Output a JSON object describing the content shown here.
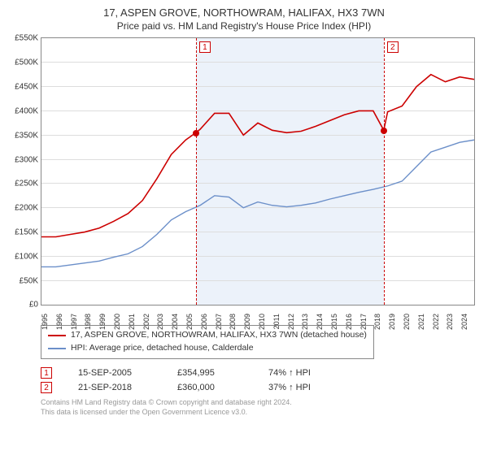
{
  "title": {
    "address": "17, ASPEN GROVE, NORTHOWRAM, HALIFAX, HX3 7WN",
    "subtitle": "Price paid vs. HM Land Registry's House Price Index (HPI)",
    "fontsize_main": 13,
    "fontsize_sub": 12
  },
  "chart": {
    "type": "line",
    "background_color": "#ffffff",
    "plot_border_color": "#888888",
    "grid_color": "#dddddd",
    "shade_color": "#ecf2fa",
    "x": {
      "min": 1995,
      "max": 2025,
      "ticks": [
        1995,
        1996,
        1997,
        1998,
        1999,
        2000,
        2001,
        2002,
        2003,
        2004,
        2005,
        2006,
        2007,
        2008,
        2009,
        2010,
        2011,
        2012,
        2013,
        2014,
        2015,
        2016,
        2017,
        2018,
        2019,
        2020,
        2021,
        2022,
        2023,
        2024
      ],
      "label_fontsize": 9
    },
    "y": {
      "min": 0,
      "max": 550000,
      "ticks": [
        0,
        50000,
        100000,
        150000,
        200000,
        250000,
        300000,
        350000,
        400000,
        450000,
        500000,
        550000
      ],
      "tick_labels": [
        "£0",
        "£50K",
        "£100K",
        "£150K",
        "£200K",
        "£250K",
        "£300K",
        "£350K",
        "£400K",
        "£450K",
        "£500K",
        "£550K"
      ],
      "label_fontsize": 10
    },
    "series": [
      {
        "id": "property",
        "label": "17, ASPEN GROVE, NORTHOWRAM, HALIFAX, HX3 7WN (detached house)",
        "color": "#cc0000",
        "line_width": 1.6,
        "data": [
          [
            1995,
            140000
          ],
          [
            1996,
            140000
          ],
          [
            1997,
            145000
          ],
          [
            1998,
            150000
          ],
          [
            1999,
            158000
          ],
          [
            2000,
            172000
          ],
          [
            2001,
            188000
          ],
          [
            2002,
            215000
          ],
          [
            2003,
            260000
          ],
          [
            2004,
            310000
          ],
          [
            2005,
            340000
          ],
          [
            2005.71,
            354995
          ],
          [
            2006,
            362000
          ],
          [
            2007,
            395000
          ],
          [
            2008,
            395000
          ],
          [
            2009,
            350000
          ],
          [
            2010,
            375000
          ],
          [
            2011,
            360000
          ],
          [
            2012,
            355000
          ],
          [
            2013,
            358000
          ],
          [
            2014,
            368000
          ],
          [
            2015,
            380000
          ],
          [
            2016,
            392000
          ],
          [
            2017,
            400000
          ],
          [
            2018,
            400000
          ],
          [
            2018.73,
            360000
          ],
          [
            2019,
            398000
          ],
          [
            2020,
            410000
          ],
          [
            2021,
            450000
          ],
          [
            2022,
            475000
          ],
          [
            2023,
            460000
          ],
          [
            2024,
            470000
          ],
          [
            2025,
            465000
          ]
        ]
      },
      {
        "id": "hpi",
        "label": "HPI: Average price, detached house, Calderdale",
        "color": "#6b8fc9",
        "line_width": 1.4,
        "data": [
          [
            1995,
            78000
          ],
          [
            1996,
            78000
          ],
          [
            1997,
            82000
          ],
          [
            1998,
            86000
          ],
          [
            1999,
            90000
          ],
          [
            2000,
            98000
          ],
          [
            2001,
            105000
          ],
          [
            2002,
            120000
          ],
          [
            2003,
            145000
          ],
          [
            2004,
            175000
          ],
          [
            2005,
            192000
          ],
          [
            2006,
            205000
          ],
          [
            2007,
            225000
          ],
          [
            2008,
            222000
          ],
          [
            2009,
            200000
          ],
          [
            2010,
            212000
          ],
          [
            2011,
            205000
          ],
          [
            2012,
            202000
          ],
          [
            2013,
            205000
          ],
          [
            2014,
            210000
          ],
          [
            2015,
            218000
          ],
          [
            2016,
            225000
          ],
          [
            2017,
            232000
          ],
          [
            2018,
            238000
          ],
          [
            2019,
            245000
          ],
          [
            2020,
            255000
          ],
          [
            2021,
            285000
          ],
          [
            2022,
            315000
          ],
          [
            2023,
            325000
          ],
          [
            2024,
            335000
          ],
          [
            2025,
            340000
          ]
        ]
      }
    ],
    "vlines": [
      {
        "x": 2005.71,
        "label": "1"
      },
      {
        "x": 2018.73,
        "label": "2"
      }
    ],
    "sale_points": [
      {
        "x": 2005.71,
        "y": 354995
      },
      {
        "x": 2018.73,
        "y": 360000
      }
    ],
    "shade_range": [
      2005.71,
      2018.73
    ]
  },
  "legend": {
    "border_color": "#888888",
    "fontsize": 10.5
  },
  "sales": [
    {
      "num": "1",
      "date": "15-SEP-2005",
      "price": "£354,995",
      "pct": "74% ↑ HPI"
    },
    {
      "num": "2",
      "date": "21-SEP-2018",
      "price": "£360,000",
      "pct": "37% ↑ HPI"
    }
  ],
  "footer": {
    "line1": "Contains HM Land Registry data © Crown copyright and database right 2024.",
    "line2": "This data is licensed under the Open Government Licence v3.0.",
    "color": "#999999",
    "fontsize": 9
  }
}
